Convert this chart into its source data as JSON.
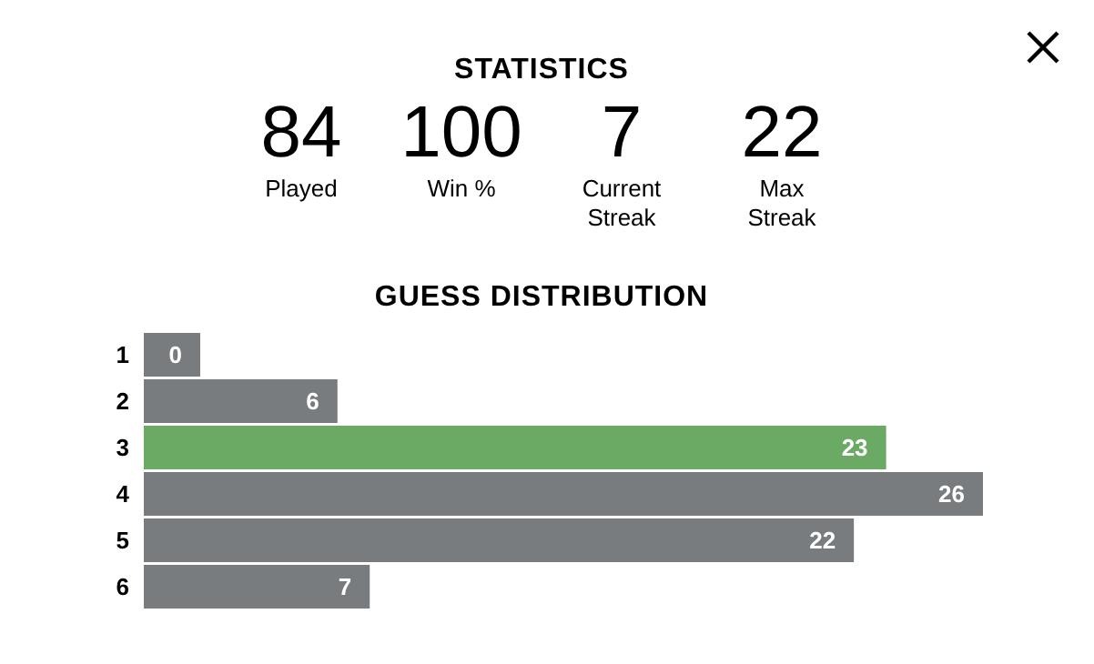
{
  "chart_data": [
    {
      "type": "other",
      "title": "STATISTICS",
      "annotations": [
        "84",
        "Played",
        "100",
        "Win %",
        "7",
        "Current Streak",
        "22",
        "Max Streak"
      ]
    },
    {
      "type": "bar",
      "title": "GUESS DISTRIBUTION",
      "orientation": "horizontal",
      "categories": [
        "1",
        "2",
        "3",
        "4",
        "5",
        "6"
      ],
      "values": [
        0,
        6,
        23,
        26,
        22,
        7
      ],
      "colors": [
        "#787c7e",
        "#787c7e",
        "#6aaa64",
        "#787c7e",
        "#787c7e",
        "#787c7e"
      ],
      "data_labels": true
    }
  ]
}
